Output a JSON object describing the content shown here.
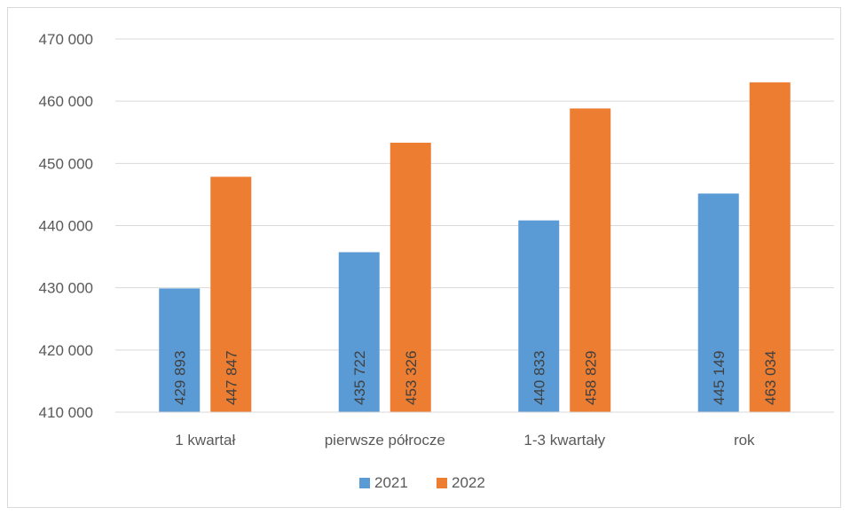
{
  "chart_data": {
    "type": "bar",
    "categories": [
      "1 kwartał",
      "pierwsze półrocze",
      "1-3 kwartały",
      "rok"
    ],
    "series": [
      {
        "name": "2021",
        "color": "#5b9bd5",
        "values": [
          429893,
          435722,
          440833,
          445149
        ],
        "labels": [
          "429 893",
          "435 722",
          "440 833",
          "445 149"
        ]
      },
      {
        "name": "2022",
        "color": "#ed7d31",
        "values": [
          447847,
          453326,
          458829,
          463034
        ],
        "labels": [
          "447 847",
          "453 326",
          "458 829",
          "463 034"
        ]
      }
    ],
    "y_ticks": [
      410000,
      420000,
      430000,
      440000,
      450000,
      460000,
      470000
    ],
    "y_tick_labels": [
      "410 000",
      "420 000",
      "430 000",
      "440 000",
      "450 000",
      "460 000",
      "470 000"
    ],
    "ylim": [
      410000,
      470000
    ],
    "grid": true,
    "legend_position": "bottom",
    "title": "",
    "xlabel": "",
    "ylabel": ""
  }
}
